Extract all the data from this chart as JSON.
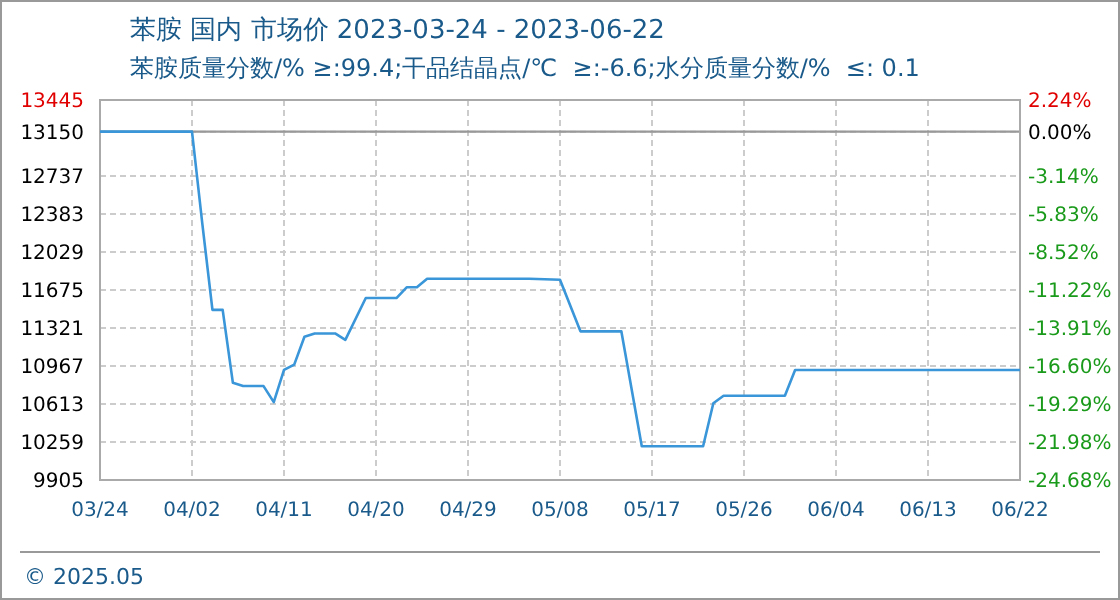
{
  "chart_data": {
    "type": "line",
    "title": "苯胺 国内 市场价 2023-03-24 - 2023-06-22",
    "subtitle": "苯胺质量分数/% ≥:99.4;干品结晶点/℃  ≥:-6.6;水分质量分数/%  ≤: 0.1",
    "x": [
      "2023-03-24",
      "2023-04-02",
      "2023-04-03",
      "2023-04-04",
      "2023-04-05",
      "2023-04-06",
      "2023-04-07",
      "2023-04-09",
      "2023-04-10",
      "2023-04-11",
      "2023-04-12",
      "2023-04-13",
      "2023-04-14",
      "2023-04-16",
      "2023-04-17",
      "2023-04-19",
      "2023-04-22",
      "2023-04-23",
      "2023-04-24",
      "2023-04-25",
      "2023-05-05",
      "2023-05-08",
      "2023-05-10",
      "2023-05-14",
      "2023-05-16",
      "2023-05-22",
      "2023-05-23",
      "2023-05-24",
      "2023-05-30",
      "2023-05-31",
      "2023-06-22"
    ],
    "series": [
      {
        "color": "#3a96d8",
        "values": [
          13150,
          13150,
          12300,
          11490,
          11490,
          10810,
          10780,
          10780,
          10630,
          10930,
          10980,
          11240,
          11270,
          11270,
          11210,
          11600,
          11600,
          11700,
          11700,
          11780,
          11780,
          11770,
          11290,
          11290,
          10220,
          10220,
          10620,
          10690,
          10690,
          10930,
          10930
        ]
      }
    ],
    "xlim": [
      "2023-03-24",
      "2023-06-22"
    ],
    "xticks": [
      {
        "value": "2023-03-24",
        "label": "03/24"
      },
      {
        "value": "2023-04-02",
        "label": "04/02"
      },
      {
        "value": "2023-04-11",
        "label": "04/11"
      },
      {
        "value": "2023-04-20",
        "label": "04/20"
      },
      {
        "value": "2023-04-29",
        "label": "04/29"
      },
      {
        "value": "2023-05-08",
        "label": "05/08"
      },
      {
        "value": "2023-05-17",
        "label": "05/17"
      },
      {
        "value": "2023-05-26",
        "label": "05/26"
      },
      {
        "value": "2023-06-04",
        "label": "06/04"
      },
      {
        "value": "2023-06-13",
        "label": "06/13"
      },
      {
        "value": "2023-06-22",
        "label": "06/22"
      }
    ],
    "ylim": [
      9905,
      13445
    ],
    "yticks": [
      13445,
      13150,
      12737,
      12383,
      12029,
      11675,
      11321,
      10967,
      10613,
      10259,
      9905
    ],
    "y2lim": [
      -24.68,
      2.24
    ],
    "y2ticks": [
      {
        "value": 2.24,
        "label": "2.24%"
      },
      {
        "value": 0,
        "label": "0.00%"
      },
      {
        "value": -3.14,
        "label": "-3.14%"
      },
      {
        "value": -5.83,
        "label": "-5.83%"
      },
      {
        "value": -8.52,
        "label": "-8.52%"
      },
      {
        "value": -11.22,
        "label": "-11.22%"
      },
      {
        "value": -13.91,
        "label": "-13.91%"
      },
      {
        "value": -16.6,
        "label": "-16.60%"
      },
      {
        "value": -19.29,
        "label": "-19.29%"
      },
      {
        "value": -21.98,
        "label": "-21.98%"
      },
      {
        "value": -24.68,
        "label": "-24.68%"
      }
    ],
    "ref_lines": [
      {
        "axis": "y",
        "value": 13150,
        "color": "#999999"
      }
    ],
    "grid": true,
    "annotations": [
      "© 2025.05"
    ]
  }
}
